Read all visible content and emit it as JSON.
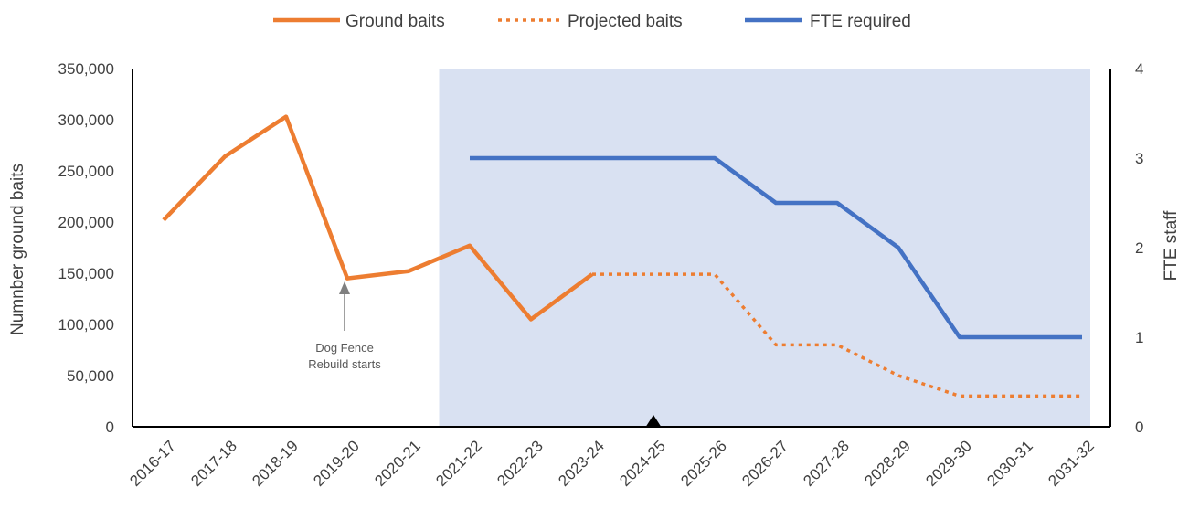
{
  "chart_data": {
    "type": "line",
    "categories": [
      "2016-17",
      "2017-18",
      "2018-19",
      "2019-20",
      "2020-21",
      "2021-22",
      "2022-23",
      "2023-24",
      "2024-25",
      "2025-26",
      "2026-27",
      "2027-28",
      "2028-29",
      "2029-30",
      "2030-31",
      "2031-32"
    ],
    "series": [
      {
        "name": "Ground baits",
        "axis": "left",
        "style": "solid",
        "color": "#ED7D31",
        "values": [
          202000,
          264000,
          303000,
          145000,
          152000,
          177000,
          105000,
          149000,
          null,
          null,
          null,
          null,
          null,
          null,
          null,
          null
        ]
      },
      {
        "name": "Projected baits",
        "axis": "left",
        "style": "dotted",
        "color": "#ED7D31",
        "values": [
          null,
          null,
          null,
          null,
          null,
          null,
          null,
          149000,
          149000,
          149000,
          80000,
          80000,
          50000,
          30000,
          30000,
          30000
        ]
      },
      {
        "name": "FTE required",
        "axis": "right",
        "style": "solid",
        "color": "#4472C4",
        "values": [
          null,
          null,
          null,
          null,
          null,
          3,
          3,
          3,
          3,
          3,
          2.5,
          2.5,
          2,
          1,
          1,
          1
        ]
      }
    ],
    "ylabel": "Numnber ground baits",
    "y2label": "FTE staff",
    "ylim": [
      0,
      350000
    ],
    "yticks": [
      "0",
      "50,000",
      "100,000",
      "150,000",
      "200,000",
      "250,000",
      "300,000",
      "350,000"
    ],
    "y2lim": [
      0,
      4
    ],
    "y2ticks": [
      "0",
      "1",
      "2",
      "3",
      "4"
    ],
    "legend_position": "top",
    "grid": false,
    "shaded_region": {
      "from": "2021-22",
      "to": "2031-32",
      "color": "#D9E1F2"
    },
    "marker": {
      "category": "2024-25",
      "shape": "triangle"
    },
    "annotations": [
      {
        "category": "2019-20",
        "lines": [
          "Dog Fence",
          "Rebuild starts"
        ]
      }
    ]
  }
}
